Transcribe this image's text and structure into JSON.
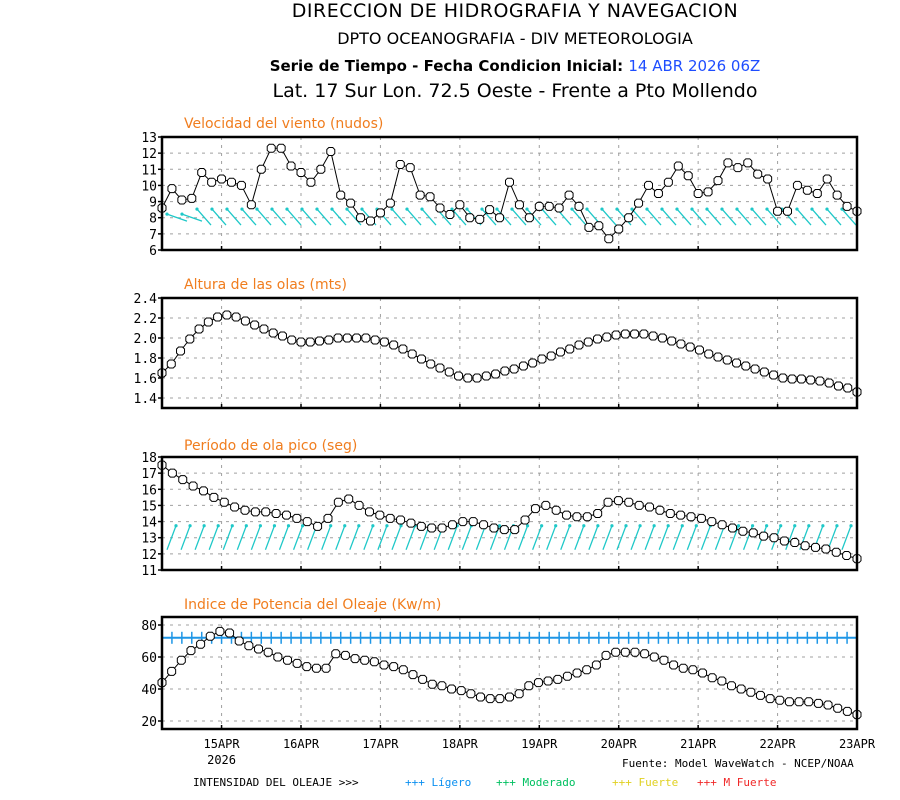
{
  "header": {
    "org": "DIRECCION DE HIDROGRAFIA Y NAVEGACION",
    "dept": "DPTO OCEANOGRAFIA - DIV METEOROLOGIA",
    "series_label": "Serie de Tiempo - Fecha Condicion Inicial:",
    "init_date": "14 ABR 2026 06Z",
    "location": "Lat. 17 Sur  Lon. 72.5 Oeste - Frente a Pto Mollendo"
  },
  "footer": {
    "source": "Fuente: Model WaveWatch - NCEP/NOAA",
    "intensity_label": "INTENSIDAD DEL OLEAJE >>>",
    "legend": [
      {
        "symbol": "+++",
        "label": "Ligero",
        "display": "Lígero",
        "color": "#0a8ff0"
      },
      {
        "symbol": "+++",
        "label": "Moderado",
        "display": "Moderado",
        "color": "#00c060"
      },
      {
        "symbol": "+++",
        "label": "Fuerte",
        "display": "Fuerte",
        "color": "#e0d020"
      },
      {
        "symbol": "+++",
        "label": "M Fuerte",
        "display": "M Fuerte",
        "color": "#f02828"
      }
    ]
  },
  "colors": {
    "title": "#f07d1e",
    "series": "#000000",
    "arrows": "#1ec8c8",
    "threshold": "#1e96e6",
    "grid": "#a0a0a0"
  },
  "chart_data": [
    {
      "type": "line",
      "title": "Velocidad del viento (nudos)",
      "ylim": [
        6,
        13
      ],
      "yticks": [
        6,
        7,
        8,
        9,
        10,
        11,
        12,
        13
      ],
      "x_start": "14APR 06Z",
      "x_step_hours": 3,
      "xticks": [
        "15APR",
        "16APR",
        "17APR",
        "18APR",
        "19APR",
        "20APR",
        "21APR",
        "22APR",
        "23APR"
      ],
      "xtick_sub": [
        "2026",
        "",
        "",
        "",
        "",
        "",
        "",
        "",
        ""
      ],
      "grid": true,
      "values": [
        8.6,
        9.8,
        9.1,
        9.2,
        10.8,
        10.2,
        10.4,
        10.2,
        10.0,
        8.8,
        11.0,
        12.3,
        12.3,
        11.2,
        10.8,
        10.2,
        11.0,
        12.1,
        9.4,
        8.9,
        8.0,
        7.8,
        8.3,
        8.9,
        11.3,
        11.1,
        9.4,
        9.3,
        8.6,
        8.2,
        8.8,
        8.0,
        7.9,
        8.5,
        8.0,
        10.2,
        8.8,
        8.0,
        8.7,
        8.7,
        8.6,
        9.4,
        8.7,
        7.4,
        7.5,
        6.7,
        7.3,
        8.0,
        8.9,
        10.0,
        9.5,
        10.2,
        11.2,
        10.6,
        9.5,
        9.6,
        10.3,
        11.4,
        11.1,
        11.4,
        10.7,
        10.4,
        8.4,
        8.4,
        10.0,
        9.7,
        9.5,
        10.4,
        9.4,
        8.7,
        8.4
      ],
      "arrows": {
        "type": "wind_direction",
        "baseline": 8.1,
        "count": 46
      }
    },
    {
      "type": "line",
      "title": "Altura de las olas (mts)",
      "ylim": [
        1.3,
        2.4
      ],
      "yticks": [
        1.4,
        1.6,
        1.8,
        2.0,
        2.2,
        2.4
      ],
      "ytick_labels": [
        "1.4",
        "1.6",
        "1.8",
        "2.0",
        "2.2",
        "2.4"
      ],
      "grid": true,
      "values": [
        1.65,
        1.74,
        1.87,
        1.99,
        2.09,
        2.16,
        2.21,
        2.23,
        2.21,
        2.17,
        2.13,
        2.09,
        2.05,
        2.02,
        1.98,
        1.96,
        1.96,
        1.97,
        1.98,
        2.0,
        2.0,
        2.0,
        2.0,
        1.98,
        1.96,
        1.93,
        1.89,
        1.84,
        1.79,
        1.74,
        1.7,
        1.66,
        1.62,
        1.6,
        1.6,
        1.62,
        1.64,
        1.67,
        1.69,
        1.72,
        1.75,
        1.79,
        1.82,
        1.86,
        1.89,
        1.93,
        1.96,
        1.99,
        2.01,
        2.03,
        2.04,
        2.04,
        2.04,
        2.02,
        2.0,
        1.97,
        1.94,
        1.91,
        1.88,
        1.84,
        1.81,
        1.78,
        1.75,
        1.72,
        1.69,
        1.66,
        1.63,
        1.6,
        1.59,
        1.59,
        1.58,
        1.57,
        1.55,
        1.52,
        1.5,
        1.46
      ]
    },
    {
      "type": "line",
      "title": "Período de ola pico (seg)",
      "ylim": [
        11,
        18
      ],
      "yticks": [
        11,
        12,
        13,
        14,
        15,
        16,
        17,
        18
      ],
      "grid": true,
      "values": [
        17.5,
        17.0,
        16.6,
        16.2,
        15.9,
        15.5,
        15.2,
        14.9,
        14.7,
        14.6,
        14.6,
        14.5,
        14.4,
        14.2,
        14.0,
        13.7,
        14.2,
        15.2,
        15.4,
        15.0,
        14.6,
        14.4,
        14.2,
        14.1,
        13.9,
        13.7,
        13.6,
        13.6,
        13.8,
        14.0,
        14.0,
        13.8,
        13.6,
        13.5,
        13.5,
        14.1,
        14.8,
        15.0,
        14.7,
        14.4,
        14.3,
        14.3,
        14.5,
        15.2,
        15.3,
        15.2,
        15.0,
        14.9,
        14.7,
        14.5,
        14.4,
        14.3,
        14.2,
        14.0,
        13.8,
        13.6,
        13.4,
        13.3,
        13.1,
        13.0,
        12.8,
        12.7,
        12.5,
        12.4,
        12.3,
        12.1,
        11.9,
        11.7
      ],
      "arrows": {
        "type": "wave_direction",
        "baseline": 13.0,
        "count": 49
      }
    },
    {
      "type": "line",
      "title": "Indice de Potencia del Oleaje (Kw/m)",
      "ylim": [
        15,
        85
      ],
      "yticks": [
        20,
        40,
        60,
        80
      ],
      "grid": true,
      "threshold": {
        "value": 72,
        "label": "Ligero"
      },
      "values": [
        44,
        51,
        58,
        64,
        68,
        73,
        76,
        75,
        70,
        67,
        65,
        63,
        60,
        58,
        56,
        54,
        53,
        53,
        62,
        61,
        59,
        58,
        57,
        55,
        54,
        52,
        49,
        46,
        43,
        42,
        40,
        39,
        37,
        35,
        34,
        34,
        35,
        37,
        42,
        44,
        45,
        46,
        48,
        50,
        52,
        55,
        61,
        63,
        63,
        63,
        62,
        60,
        58,
        55,
        53,
        52,
        50,
        47,
        45,
        42,
        40,
        38,
        36,
        34,
        33,
        32,
        32,
        32,
        31,
        30,
        28,
        26,
        24
      ]
    }
  ]
}
